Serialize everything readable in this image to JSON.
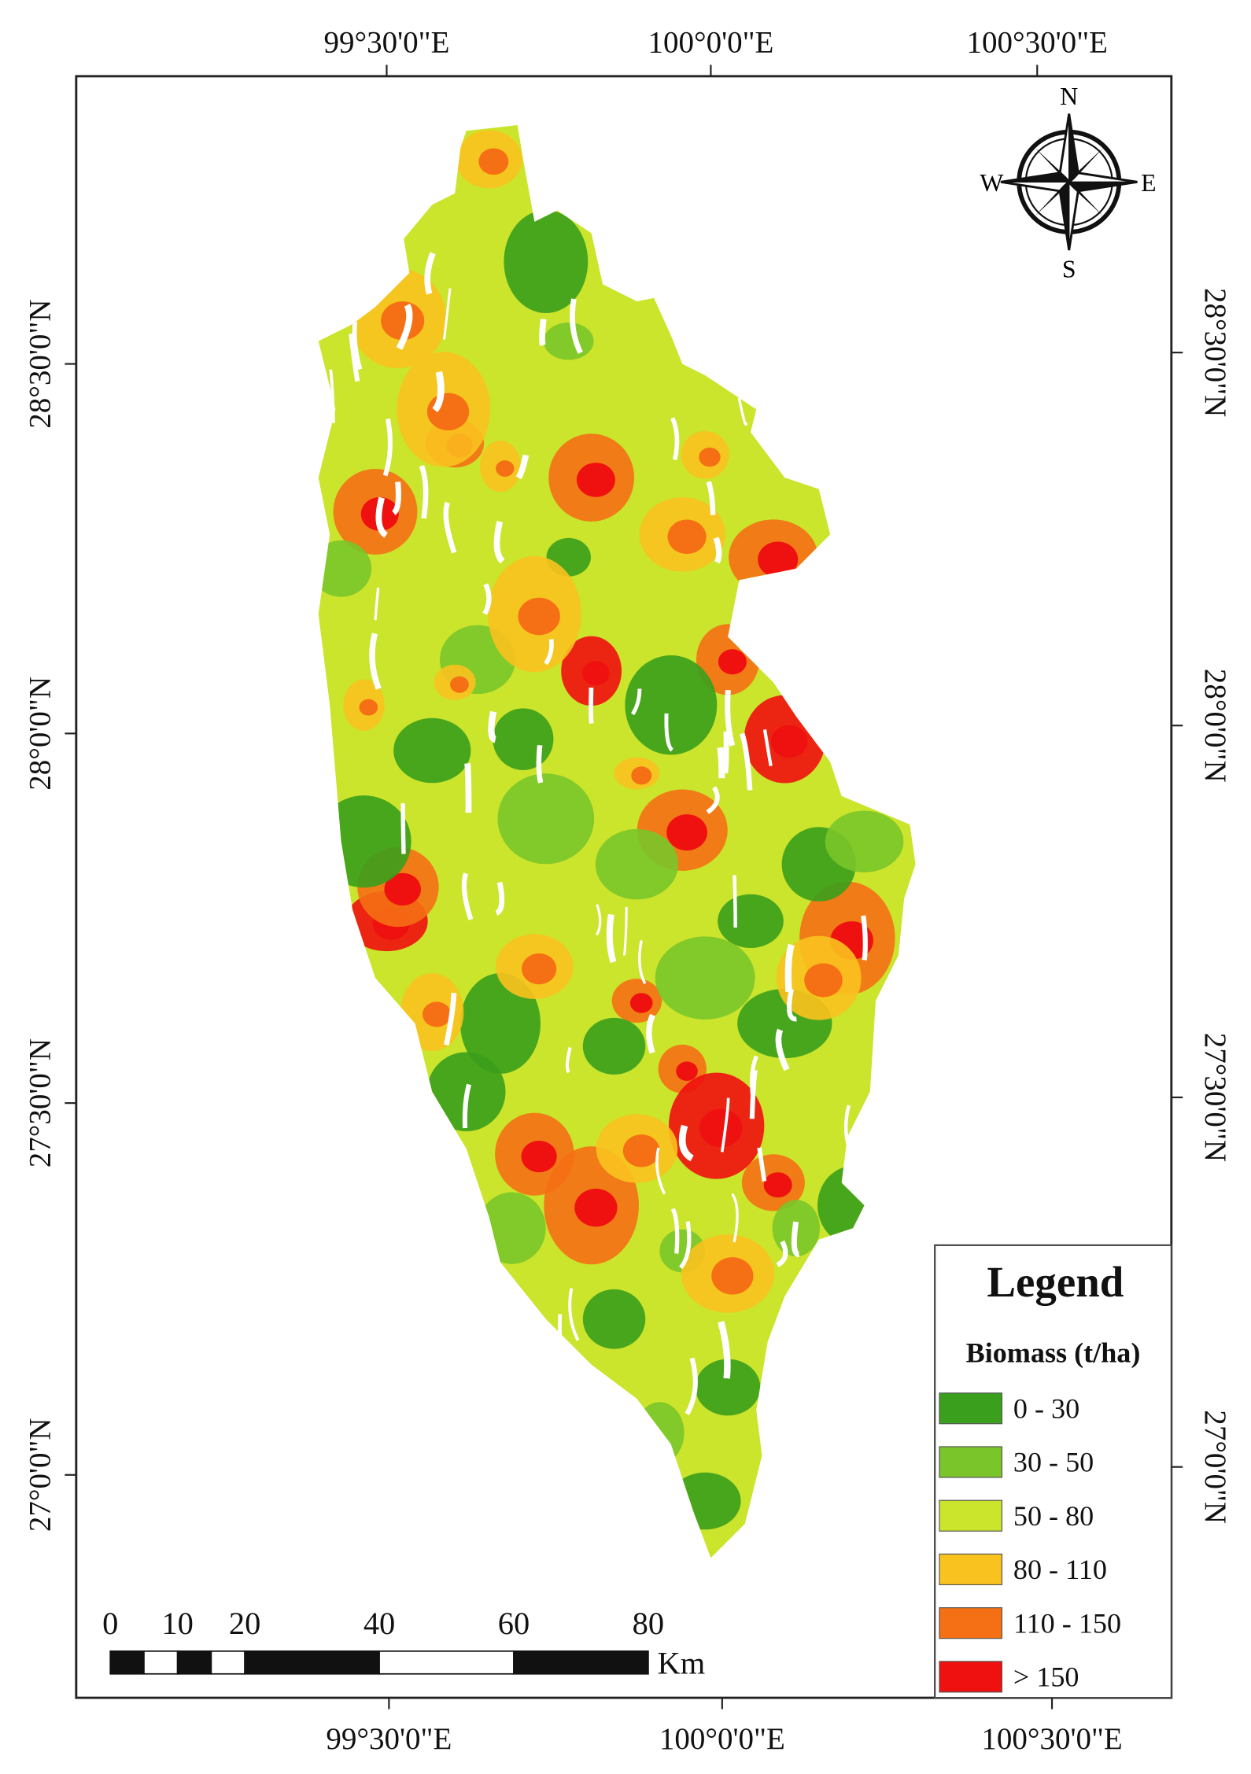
{
  "map": {
    "top_labels": [
      "99°30'0\"E",
      "100°0'0\"E",
      "100°30'0\"E"
    ],
    "bottom_labels": [
      "99°30'0\"E",
      "100°0'0\"E",
      "100°30'0\"E"
    ],
    "left_labels": [
      "28°30'0\"N",
      "28°0'0\"N",
      "27°30'0\"N",
      "27°0'0\"N"
    ],
    "right_labels": [
      "28°30'0\"N",
      "28°0'0\"N",
      "27°30'0\"N",
      "27°0'0\"N"
    ],
    "compass": {
      "north": "N",
      "east": "E",
      "south": "S",
      "west": "W"
    },
    "legend": {
      "title": "Legend",
      "subtitle": "Biomass (t/ha)",
      "items": [
        {
          "label": "0 - 30",
          "color": "#3a9f1c"
        },
        {
          "label": "30 - 50",
          "color": "#7ac52a"
        },
        {
          "label": "50 - 80",
          "color": "#cbe42c"
        },
        {
          "label": "80 - 110",
          "color": "#f9c21e"
        },
        {
          "label": "110 - 150",
          "color": "#f56f14"
        },
        {
          "label": "> 150",
          "color": "#ef1010"
        }
      ]
    },
    "scale_bar": {
      "ticks": [
        0,
        10,
        20,
        40,
        60,
        80
      ],
      "unit": "Km"
    }
  }
}
